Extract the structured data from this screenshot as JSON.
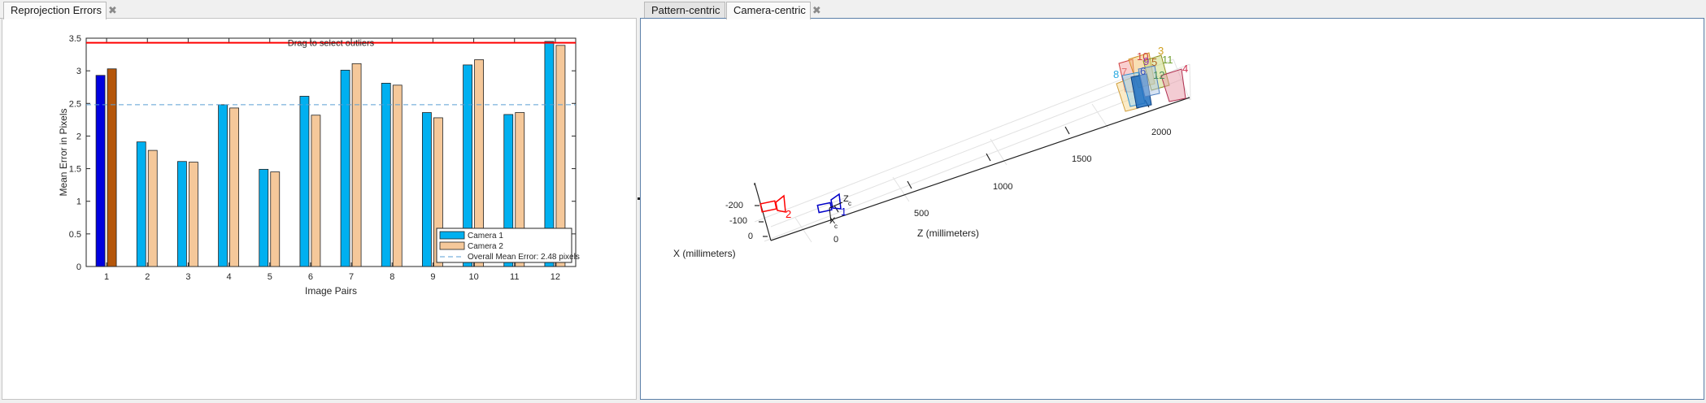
{
  "left_panel": {
    "tab_label": "Reprojection Errors",
    "drag_hint": "Drag to select outliers"
  },
  "right_panel": {
    "tabs": [
      {
        "label": "Pattern-centric",
        "active": false
      },
      {
        "label": "Camera-centric",
        "active": true
      }
    ],
    "axis_label_x": "X (millimeters)",
    "axis_label_z": "Z (millimeters)",
    "z_ticks": [
      "0",
      "500",
      "1000",
      "1500",
      "2000"
    ],
    "x_ticks": [
      "-200",
      "-100",
      "0"
    ],
    "camera_labels": [
      "1",
      "2"
    ],
    "camera_axis_labels": {
      "z": "Z",
      "x": "X",
      "sub": "c"
    },
    "pattern_labels": [
      "8",
      "7",
      "10",
      "9",
      "6",
      "3",
      "11",
      "5",
      "12",
      "4"
    ]
  },
  "chart_data": {
    "type": "bar",
    "title": "",
    "xlabel": "Image Pairs",
    "ylabel": "Mean Error in Pixels",
    "categories": [
      "1",
      "2",
      "3",
      "4",
      "5",
      "6",
      "7",
      "8",
      "9",
      "10",
      "11",
      "12"
    ],
    "ylim": [
      0,
      3.5
    ],
    "yticks": [
      "0",
      "0.5",
      "1",
      "1.5",
      "2",
      "2.5",
      "3",
      "3.5"
    ],
    "series": [
      {
        "name": "Camera 1",
        "values": [
          2.93,
          1.91,
          1.61,
          2.48,
          1.49,
          2.61,
          3.01,
          2.81,
          2.36,
          3.09,
          2.33,
          3.45
        ],
        "color": "#00b0f0",
        "selected_color": "#0000e0"
      },
      {
        "name": "Camera 2",
        "values": [
          3.03,
          1.78,
          1.6,
          2.43,
          1.45,
          2.32,
          3.11,
          2.78,
          2.28,
          3.17,
          2.36,
          3.39
        ],
        "color": "#f5c89a",
        "selected_color": "#b5560a"
      }
    ],
    "selected_category": "1",
    "mean_line": {
      "label": "Overall Mean Error: 2.48 pixels",
      "value": 2.48,
      "color": "#5a9fd4"
    },
    "threshold_line": {
      "value": 3.43,
      "color": "#ff0000"
    },
    "legend_position": "bottom-right",
    "grid": false
  }
}
